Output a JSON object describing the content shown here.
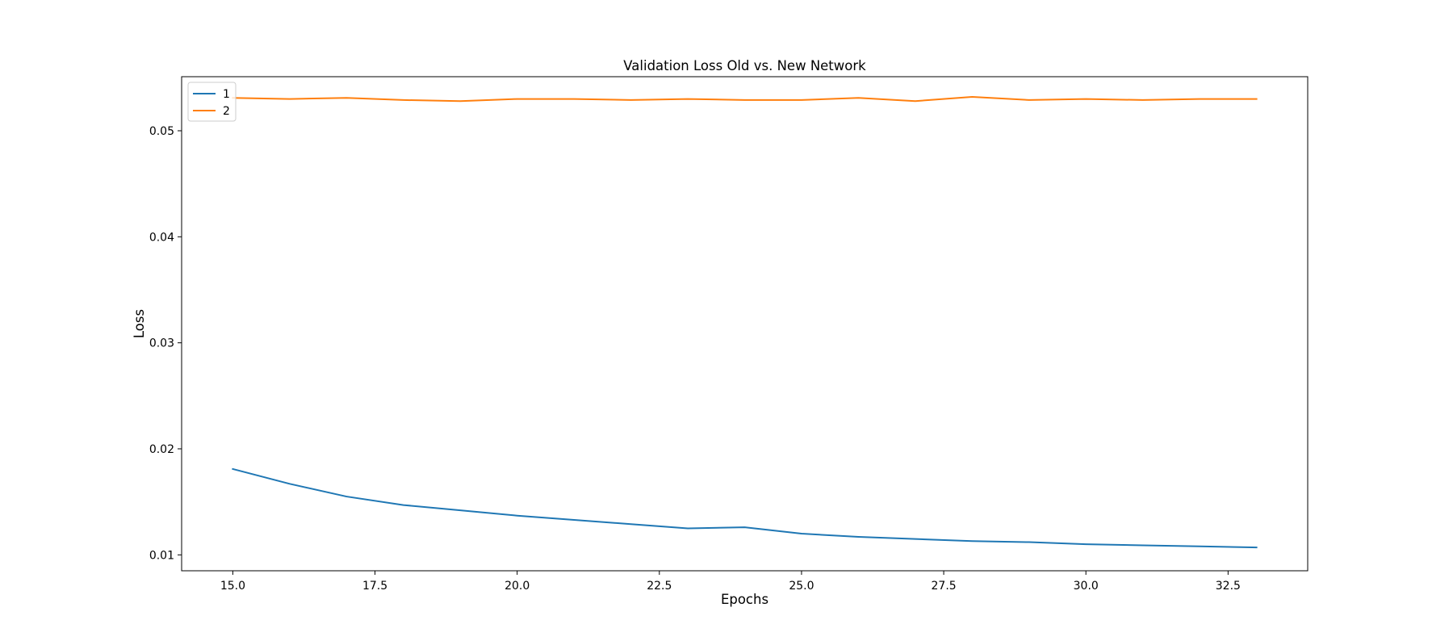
{
  "chart_data": {
    "type": "line",
    "title": "Validation Loss Old vs. New Network",
    "xlabel": "Epochs",
    "ylabel": "Loss",
    "xlim": [
      14.1,
      33.9
    ],
    "ylim": [
      0.0085,
      0.0551
    ],
    "xticks": [
      15.0,
      17.5,
      20.0,
      22.5,
      25.0,
      27.5,
      30.0,
      32.5
    ],
    "xtick_labels": [
      "15.0",
      "17.5",
      "20.0",
      "22.5",
      "25.0",
      "27.5",
      "30.0",
      "32.5"
    ],
    "yticks": [
      0.01,
      0.02,
      0.03,
      0.04,
      0.05
    ],
    "ytick_labels": [
      "0.01",
      "0.02",
      "0.03",
      "0.04",
      "0.05"
    ],
    "grid": false,
    "legend_position": "upper-left",
    "x": [
      15,
      16,
      17,
      18,
      19,
      20,
      21,
      22,
      23,
      24,
      25,
      26,
      27,
      28,
      29,
      30,
      31,
      32,
      33
    ],
    "series": [
      {
        "name": "1",
        "color": "#1f77b4",
        "values": [
          0.0181,
          0.0167,
          0.0155,
          0.0147,
          0.0142,
          0.0137,
          0.0133,
          0.0129,
          0.0125,
          0.0126,
          0.012,
          0.0117,
          0.0115,
          0.0113,
          0.0112,
          0.011,
          0.0109,
          0.0108,
          0.0107
        ]
      },
      {
        "name": "2",
        "color": "#ff7f0e",
        "values": [
          0.0531,
          0.053,
          0.0531,
          0.0529,
          0.0528,
          0.053,
          0.053,
          0.0529,
          0.053,
          0.0529,
          0.0529,
          0.0531,
          0.0528,
          0.0532,
          0.0529,
          0.053,
          0.0529,
          0.053,
          0.053
        ]
      }
    ]
  }
}
